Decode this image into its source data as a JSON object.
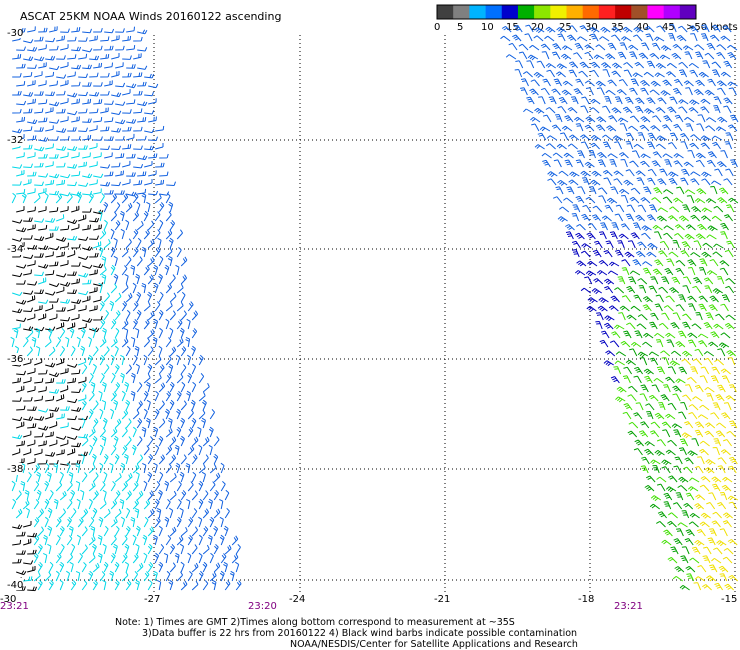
{
  "title": "ASCAT 25KM NOAA Winds 20160122 ascending",
  "legend": {
    "labels": [
      "0",
      "5",
      "10",
      "15",
      "20",
      "25",
      "30",
      "35",
      "40",
      "45",
      ">50 knots"
    ],
    "colors": [
      "#404040",
      "#808080",
      "#00b4ff",
      "#0070ff",
      "#0000cc",
      "#00b000",
      "#8ce600",
      "#f0f000",
      "#ffb000",
      "#ff6a00",
      "#ff2020",
      "#c00000",
      "#a05028",
      "#ff00ff",
      "#b000ff",
      "#6000c0"
    ]
  },
  "lat_labels": [
    "-30",
    "-32",
    "-34",
    "-36",
    "-38",
    "-40"
  ],
  "lon_labels": [
    "-27",
    "-24",
    "-21",
    "-18",
    "-15"
  ],
  "bottom_left_corner": "-30",
  "times": [
    "23:21",
    "23:20",
    "23:21"
  ],
  "notes": [
    "Note: 1) Times are GMT 2)Times along bottom correspond to measurement at ~35S",
    "3)Data buffer is 22 hrs from 20160122 4) Black wind barbs indicate possible contamination",
    "NOAA/NESDIS/Center for Satellite Applications and Research"
  ],
  "barb_colors": {
    "calm": "#000000",
    "light": "#00d8e8",
    "moderate": "#1060e0",
    "dark": "#0000c0",
    "strong": "#00a000",
    "bright": "#40e000",
    "high": "#f0e000"
  }
}
